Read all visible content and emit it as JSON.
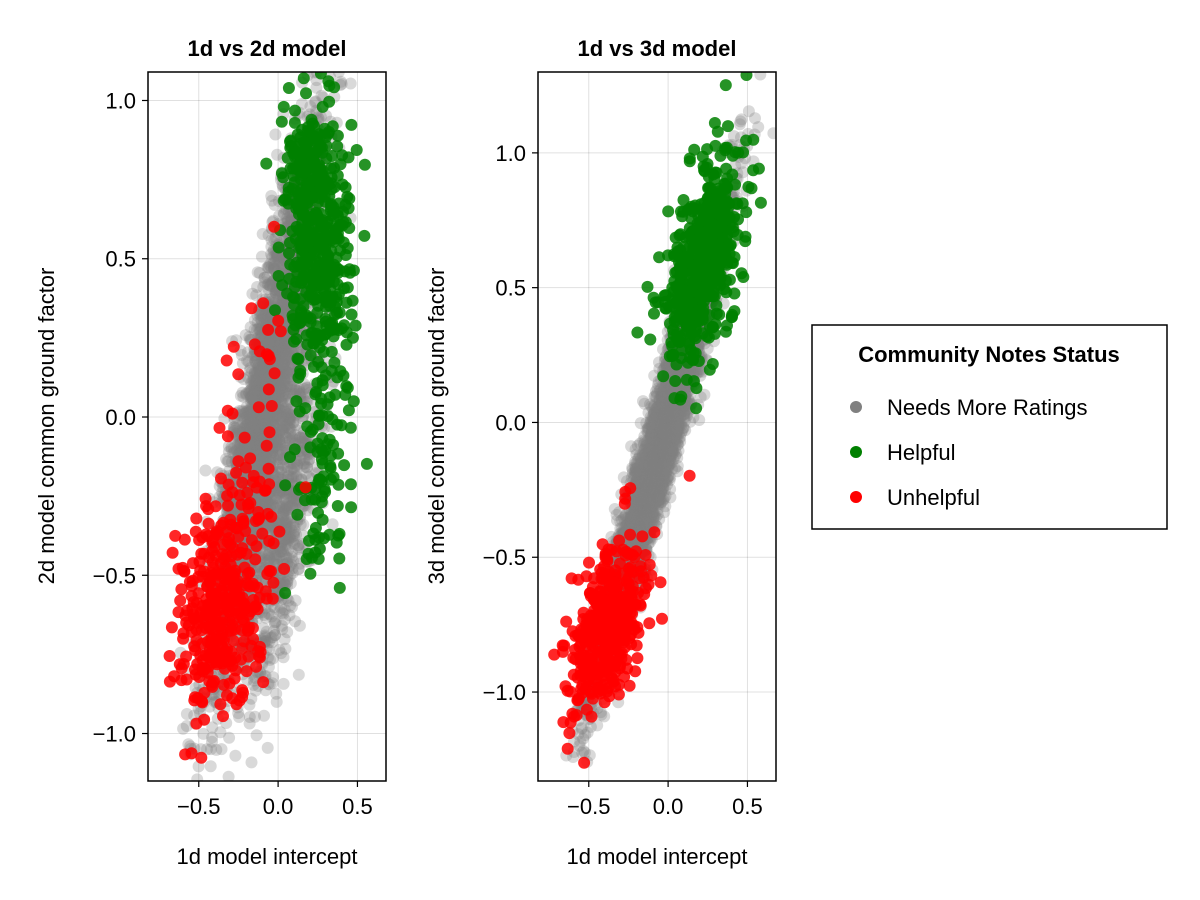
{
  "chart_data": [
    {
      "type": "scatter",
      "title": "1d vs 2d model",
      "xlabel": "1d model intercept",
      "ylabel": "2d model common ground factor",
      "xlim": [
        -0.82,
        0.68
      ],
      "ylim": [
        -1.15,
        1.09
      ],
      "xticks": [
        -0.5,
        0.0,
        0.5
      ],
      "yticks": [
        -1.0,
        -0.5,
        0.0,
        0.5,
        1.0
      ],
      "grid": true,
      "series": [
        {
          "name": "Needs More Ratings",
          "color": "#808080",
          "approx_count": 4000,
          "clusters": [
            {
              "cx": -0.08,
              "cy": 0.05,
              "sx": 0.17,
              "sy": 0.42,
              "rho": 0.88,
              "weight": 0.8
            },
            {
              "cx": 0.02,
              "cy": -0.35,
              "sx": 0.13,
              "sy": 0.28,
              "rho": 0.7,
              "weight": 0.2
            }
          ]
        },
        {
          "name": "Helpful",
          "color": "#008000",
          "approx_count": 600,
          "clusters": [
            {
              "cx": 0.24,
              "cy": 0.58,
              "sx": 0.1,
              "sy": 0.22,
              "rho": -0.1,
              "weight": 0.85
            },
            {
              "cx": 0.3,
              "cy": -0.15,
              "sx": 0.11,
              "sy": 0.2,
              "rho": 0.2,
              "weight": 0.15
            }
          ]
        },
        {
          "name": "Unhelpful",
          "color": "#ff0000",
          "approx_count": 400,
          "clusters": [
            {
              "cx": -0.35,
              "cy": -0.6,
              "sx": 0.15,
              "sy": 0.2,
              "rho": 0.3,
              "weight": 0.92
            },
            {
              "cx": -0.12,
              "cy": 0.0,
              "sx": 0.14,
              "sy": 0.25,
              "rho": 0.2,
              "weight": 0.08
            }
          ]
        }
      ]
    },
    {
      "type": "scatter",
      "title": "1d vs 3d model",
      "xlabel": "1d model intercept",
      "ylabel": "3d model common ground factor",
      "xlim": [
        -0.82,
        0.68
      ],
      "ylim": [
        -1.33,
        1.3
      ],
      "xticks": [
        -0.5,
        0.0,
        0.5
      ],
      "yticks": [
        -1.0,
        -0.5,
        0.0,
        0.5,
        1.0
      ],
      "grid": true,
      "series": [
        {
          "name": "Needs More Ratings",
          "color": "#808080",
          "approx_count": 4000,
          "clusters": [
            {
              "cx": -0.05,
              "cy": -0.08,
              "sx": 0.2,
              "sy": 0.42,
              "rho": 0.96,
              "weight": 1.0
            }
          ]
        },
        {
          "name": "Helpful",
          "color": "#008000",
          "approx_count": 600,
          "clusters": [
            {
              "cx": 0.22,
              "cy": 0.58,
              "sx": 0.12,
              "sy": 0.2,
              "rho": 0.55,
              "weight": 1.0
            }
          ]
        },
        {
          "name": "Unhelpful",
          "color": "#ff0000",
          "approx_count": 400,
          "clusters": [
            {
              "cx": -0.38,
              "cy": -0.75,
              "sx": 0.12,
              "sy": 0.16,
              "rho": 0.55,
              "weight": 1.0
            }
          ]
        }
      ]
    }
  ],
  "legend": {
    "title": "Community Notes Status",
    "placement": "right",
    "items": [
      {
        "label": "Needs More Ratings",
        "color": "#808080"
      },
      {
        "label": "Helpful",
        "color": "#008000"
      },
      {
        "label": "Unhelpful",
        "color": "#ff0000"
      }
    ]
  }
}
